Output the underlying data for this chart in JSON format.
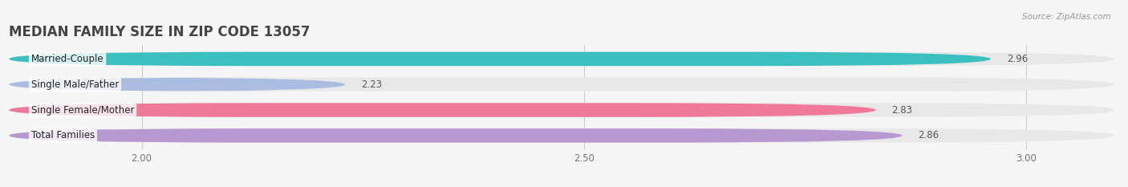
{
  "title": "MEDIAN FAMILY SIZE IN ZIP CODE 13057",
  "source": "Source: ZipAtlas.com",
  "categories": [
    "Married-Couple",
    "Single Male/Father",
    "Single Female/Mother",
    "Total Families"
  ],
  "values": [
    2.96,
    2.23,
    2.83,
    2.86
  ],
  "bar_colors": [
    "#3bbfbf",
    "#aabce0",
    "#f07898",
    "#b898d0"
  ],
  "bar_bg_color": "#e8e8e8",
  "background_color": "#f5f5f5",
  "xlim_min": 1.85,
  "xlim_max": 3.1,
  "xticks": [
    2.0,
    2.5,
    3.0
  ],
  "xtick_labels": [
    "2.00",
    "2.50",
    "3.00"
  ],
  "label_fontsize": 8.5,
  "value_fontsize": 8.5,
  "title_fontsize": 12,
  "bar_height": 0.55,
  "value_inside_threshold": 3.02
}
